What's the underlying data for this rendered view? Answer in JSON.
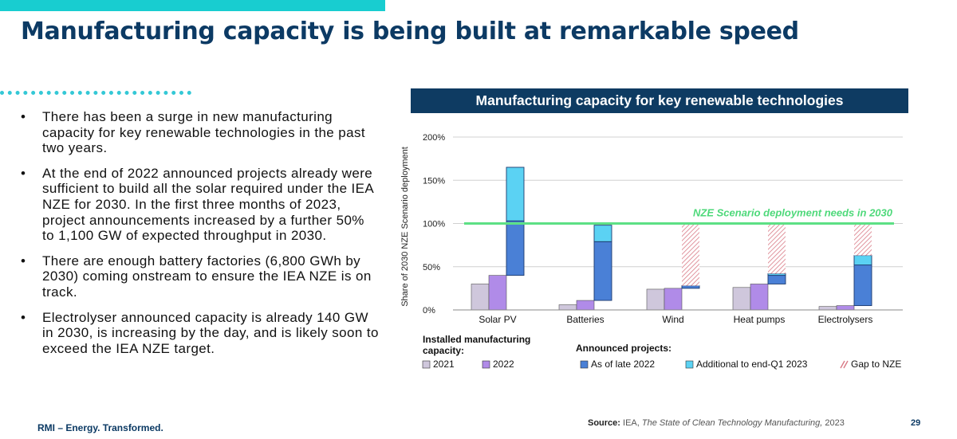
{
  "slide": {
    "title": "Manufacturing capacity is being built at remarkable speed",
    "brand": "RMI – Energy. Transformed.",
    "page_number": "29",
    "source_label": "Source:",
    "source_text": "IEA,",
    "source_title": "The State of Clean Technology Manufacturing,",
    "source_year": "2023",
    "bullet_glyph": "•",
    "bullets": [
      "There has been a surge in new manufacturing capacity for key renewable technologies in the past two years.",
      "At the end of 2022 announced projects already were sufficient to build all the solar required under the IEA NZE for 2030. In the first three months of 2023, project announcements increased by a further 50% to 1,100 GW of expected throughput in 2030.",
      "There are enough battery factories (6,800 GWh by 2030) coming onstream to ensure the IEA NZE is on track.",
      "Electrolyser announced capacity is already 140 GW in 2030, is increasing by the day, and is likely soon to exceed the IEA NZE target."
    ]
  },
  "chart_data": {
    "type": "bar",
    "title": "Manufacturing capacity for key renewable technologies",
    "ylabel": "Share of 2030 NZE Scenario deployment",
    "ylim": [
      0,
      200
    ],
    "yticks": [
      0,
      50,
      100,
      150,
      200
    ],
    "ytick_labels": [
      "0%",
      "50%",
      "100%",
      "150%",
      "200%"
    ],
    "categories": [
      "Solar PV",
      "Batteries",
      "Wind",
      "Heat pumps",
      "Electrolysers"
    ],
    "reference_line": {
      "value": 100,
      "label": "NZE Scenario deployment needs in 2030"
    },
    "installed": [
      {
        "name": "2021",
        "color": "#cfc7dc",
        "values": [
          30,
          6,
          24,
          26,
          4
        ]
      },
      {
        "name": "2022",
        "color": "#b08be8",
        "values": [
          40,
          11,
          25,
          30,
          5
        ]
      }
    ],
    "announced": {
      "base": [
        40,
        11,
        25,
        30,
        5
      ],
      "series": [
        {
          "name": "As of late 2022",
          "color": "#4a80d6",
          "values": [
            63,
            68,
            3,
            10,
            47
          ]
        },
        {
          "name": "Additional to end-Q1 2023",
          "color": "#5bd2f3",
          "values": [
            62,
            19,
            0,
            2,
            11
          ]
        }
      ]
    },
    "gap": {
      "name": "Gap to NZE",
      "color": "#d97a86",
      "ranges": [
        null,
        null,
        [
          28,
          100
        ],
        [
          42,
          100
        ],
        [
          63,
          100
        ]
      ]
    },
    "legend": {
      "installed_title": "Installed manufacturing capacity:",
      "announced_title": "Announced projects:"
    }
  }
}
